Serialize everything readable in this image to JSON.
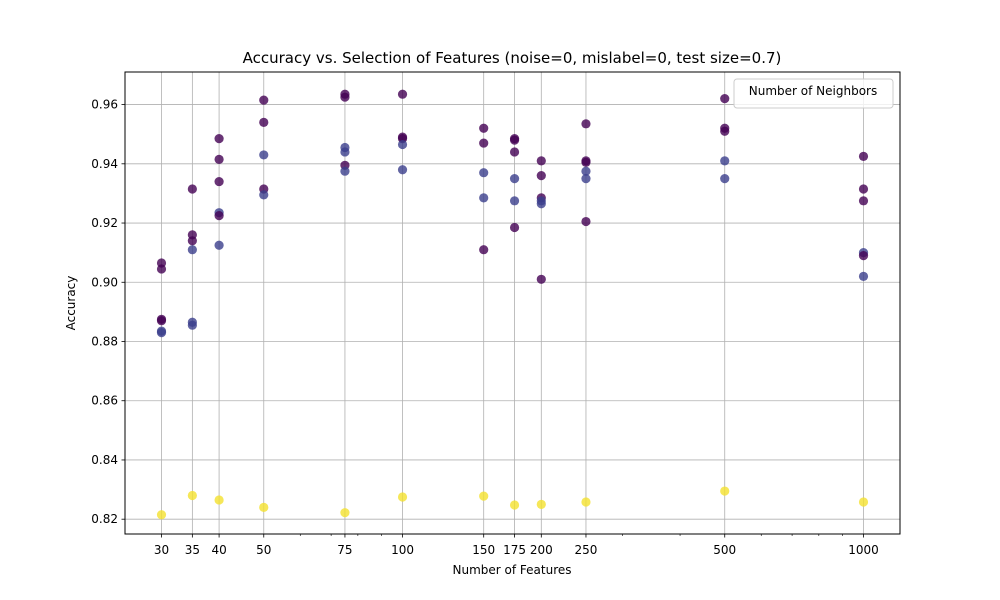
{
  "chart_data": {
    "type": "scatter",
    "title": "Accuracy vs. Selection of Features (noise=0, mislabel=0, test size=0.7)",
    "xlabel": "Number of Features",
    "ylabel": "Accuracy",
    "xscale": "log",
    "xlim": [
      25,
      1200
    ],
    "ylim": [
      0.815,
      0.971
    ],
    "xticks": [
      30,
      35,
      40,
      50,
      75,
      100,
      150,
      175,
      200,
      250,
      500,
      1000
    ],
    "yticks": [
      0.82,
      0.84,
      0.86,
      0.88,
      0.9,
      0.92,
      0.94,
      0.96
    ],
    "yticks_labels": [
      "0.82",
      "0.84",
      "0.86",
      "0.88",
      "0.90",
      "0.92",
      "0.94",
      "0.96"
    ],
    "grid": true,
    "legend": {
      "title": "Number of Neighbors",
      "placement": "top-right"
    },
    "colors": {
      "dark_purple": "#440154",
      "blue_purple": "#3b3f8c",
      "yellow": "#f4e12e"
    },
    "points": [
      {
        "x": 30,
        "y": 0.9065,
        "c": "dark_purple"
      },
      {
        "x": 30,
        "y": 0.9045,
        "c": "dark_purple"
      },
      {
        "x": 30,
        "y": 0.8875,
        "c": "dark_purple"
      },
      {
        "x": 30,
        "y": 0.887,
        "c": "dark_purple"
      },
      {
        "x": 30,
        "y": 0.8835,
        "c": "blue_purple"
      },
      {
        "x": 30,
        "y": 0.883,
        "c": "blue_purple"
      },
      {
        "x": 30,
        "y": 0.8215,
        "c": "yellow"
      },
      {
        "x": 35,
        "y": 0.9315,
        "c": "dark_purple"
      },
      {
        "x": 35,
        "y": 0.916,
        "c": "dark_purple"
      },
      {
        "x": 35,
        "y": 0.914,
        "c": "dark_purple"
      },
      {
        "x": 35,
        "y": 0.911,
        "c": "blue_purple"
      },
      {
        "x": 35,
        "y": 0.8865,
        "c": "blue_purple"
      },
      {
        "x": 35,
        "y": 0.8855,
        "c": "blue_purple"
      },
      {
        "x": 35,
        "y": 0.828,
        "c": "yellow"
      },
      {
        "x": 40,
        "y": 0.9485,
        "c": "dark_purple"
      },
      {
        "x": 40,
        "y": 0.9415,
        "c": "dark_purple"
      },
      {
        "x": 40,
        "y": 0.934,
        "c": "dark_purple"
      },
      {
        "x": 40,
        "y": 0.9235,
        "c": "blue_purple"
      },
      {
        "x": 40,
        "y": 0.9225,
        "c": "dark_purple"
      },
      {
        "x": 40,
        "y": 0.9125,
        "c": "blue_purple"
      },
      {
        "x": 40,
        "y": 0.8265,
        "c": "yellow"
      },
      {
        "x": 50,
        "y": 0.9615,
        "c": "dark_purple"
      },
      {
        "x": 50,
        "y": 0.954,
        "c": "dark_purple"
      },
      {
        "x": 50,
        "y": 0.943,
        "c": "blue_purple"
      },
      {
        "x": 50,
        "y": 0.9315,
        "c": "dark_purple"
      },
      {
        "x": 50,
        "y": 0.9295,
        "c": "blue_purple"
      },
      {
        "x": 50,
        "y": 0.824,
        "c": "yellow"
      },
      {
        "x": 75,
        "y": 0.9635,
        "c": "dark_purple"
      },
      {
        "x": 75,
        "y": 0.9625,
        "c": "dark_purple"
      },
      {
        "x": 75,
        "y": 0.9455,
        "c": "blue_purple"
      },
      {
        "x": 75,
        "y": 0.944,
        "c": "blue_purple"
      },
      {
        "x": 75,
        "y": 0.9395,
        "c": "dark_purple"
      },
      {
        "x": 75,
        "y": 0.9375,
        "c": "blue_purple"
      },
      {
        "x": 75,
        "y": 0.8222,
        "c": "yellow"
      },
      {
        "x": 100,
        "y": 0.9635,
        "c": "dark_purple"
      },
      {
        "x": 100,
        "y": 0.949,
        "c": "dark_purple"
      },
      {
        "x": 100,
        "y": 0.9485,
        "c": "dark_purple"
      },
      {
        "x": 100,
        "y": 0.9465,
        "c": "blue_purple"
      },
      {
        "x": 100,
        "y": 0.938,
        "c": "blue_purple"
      },
      {
        "x": 100,
        "y": 0.8275,
        "c": "yellow"
      },
      {
        "x": 150,
        "y": 0.952,
        "c": "dark_purple"
      },
      {
        "x": 150,
        "y": 0.947,
        "c": "dark_purple"
      },
      {
        "x": 150,
        "y": 0.937,
        "c": "blue_purple"
      },
      {
        "x": 150,
        "y": 0.9285,
        "c": "blue_purple"
      },
      {
        "x": 150,
        "y": 0.911,
        "c": "dark_purple"
      },
      {
        "x": 150,
        "y": 0.8278,
        "c": "yellow"
      },
      {
        "x": 175,
        "y": 0.9485,
        "c": "dark_purple"
      },
      {
        "x": 175,
        "y": 0.948,
        "c": "dark_purple"
      },
      {
        "x": 175,
        "y": 0.944,
        "c": "dark_purple"
      },
      {
        "x": 175,
        "y": 0.935,
        "c": "blue_purple"
      },
      {
        "x": 175,
        "y": 0.9275,
        "c": "blue_purple"
      },
      {
        "x": 175,
        "y": 0.9185,
        "c": "dark_purple"
      },
      {
        "x": 175,
        "y": 0.8248,
        "c": "yellow"
      },
      {
        "x": 200,
        "y": 0.941,
        "c": "dark_purple"
      },
      {
        "x": 200,
        "y": 0.936,
        "c": "dark_purple"
      },
      {
        "x": 200,
        "y": 0.9285,
        "c": "dark_purple"
      },
      {
        "x": 200,
        "y": 0.9275,
        "c": "blue_purple"
      },
      {
        "x": 200,
        "y": 0.9265,
        "c": "blue_purple"
      },
      {
        "x": 200,
        "y": 0.901,
        "c": "dark_purple"
      },
      {
        "x": 200,
        "y": 0.825,
        "c": "yellow"
      },
      {
        "x": 250,
        "y": 0.9535,
        "c": "dark_purple"
      },
      {
        "x": 250,
        "y": 0.941,
        "c": "dark_purple"
      },
      {
        "x": 250,
        "y": 0.9405,
        "c": "dark_purple"
      },
      {
        "x": 250,
        "y": 0.9375,
        "c": "blue_purple"
      },
      {
        "x": 250,
        "y": 0.935,
        "c": "blue_purple"
      },
      {
        "x": 250,
        "y": 0.9205,
        "c": "dark_purple"
      },
      {
        "x": 250,
        "y": 0.8258,
        "c": "yellow"
      },
      {
        "x": 500,
        "y": 0.962,
        "c": "dark_purple"
      },
      {
        "x": 500,
        "y": 0.952,
        "c": "dark_purple"
      },
      {
        "x": 500,
        "y": 0.951,
        "c": "dark_purple"
      },
      {
        "x": 500,
        "y": 0.941,
        "c": "blue_purple"
      },
      {
        "x": 500,
        "y": 0.935,
        "c": "blue_purple"
      },
      {
        "x": 500,
        "y": 0.8295,
        "c": "yellow"
      },
      {
        "x": 1000,
        "y": 0.9425,
        "c": "dark_purple"
      },
      {
        "x": 1000,
        "y": 0.9315,
        "c": "dark_purple"
      },
      {
        "x": 1000,
        "y": 0.9275,
        "c": "dark_purple"
      },
      {
        "x": 1000,
        "y": 0.91,
        "c": "blue_purple"
      },
      {
        "x": 1000,
        "y": 0.909,
        "c": "dark_purple"
      },
      {
        "x": 1000,
        "y": 0.902,
        "c": "blue_purple"
      },
      {
        "x": 1000,
        "y": 0.8258,
        "c": "yellow"
      }
    ]
  }
}
